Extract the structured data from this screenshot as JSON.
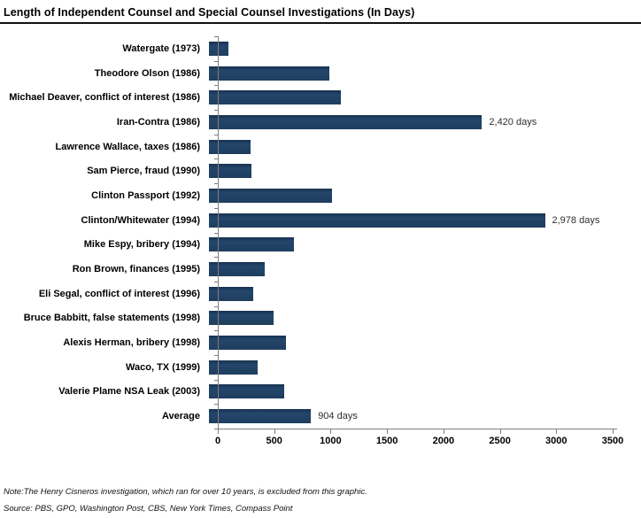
{
  "header": {
    "title": "Length of Independent Counsel and Special Counsel Investigations (In Days)"
  },
  "chart_data": {
    "type": "bar",
    "orientation": "horizontal",
    "title": "Length of Independent Counsel and Special Counsel Investigations (In Days)",
    "categories": [
      "Watergate (1973)",
      "Theodore Olson (1986)",
      "Michael Deaver, conflict of interest (1986)",
      "Iran-Contra (1986)",
      "Lawrence Wallace, taxes (1986)",
      "Sam Pierce, fraud (1990)",
      "Clinton Passport (1992)",
      "Clinton/Whitewater (1994)",
      "Mike Espy, bribery (1994)",
      "Ron Brown, finances (1995)",
      "Eli Segal, conflict of interest (1996)",
      "Bruce Babbitt, false statements (1998)",
      "Alexis Herman, bribery (1998)",
      "Waco, TX (1999)",
      "Valerie Plame NSA Leak (2003)",
      "Average"
    ],
    "values": [
      170,
      1065,
      1170,
      2420,
      370,
      375,
      1090,
      2978,
      755,
      495,
      395,
      570,
      685,
      430,
      670,
      904
    ],
    "bar_labels": [
      "",
      "",
      "",
      "2,420 days",
      "",
      "",
      "",
      "2,978 days",
      "",
      "",
      "",
      "",
      "",
      "",
      "",
      "904 days"
    ],
    "xlabel": "",
    "ylabel": "",
    "xlim": [
      0,
      3500
    ],
    "xticks": [
      0,
      500,
      1000,
      1500,
      2000,
      2500,
      3000,
      3500
    ],
    "grid": false,
    "legend": false,
    "bar_color": "#1F3E5E",
    "axis_color": "#808080"
  },
  "footer": {
    "note": "Note:The Henry Cisneros investigation, which ran for over 10 years, is excluded from this graphic.",
    "source": "Source: PBS, GPO, Washington Post, CBS, New York Times, Compass Point"
  }
}
